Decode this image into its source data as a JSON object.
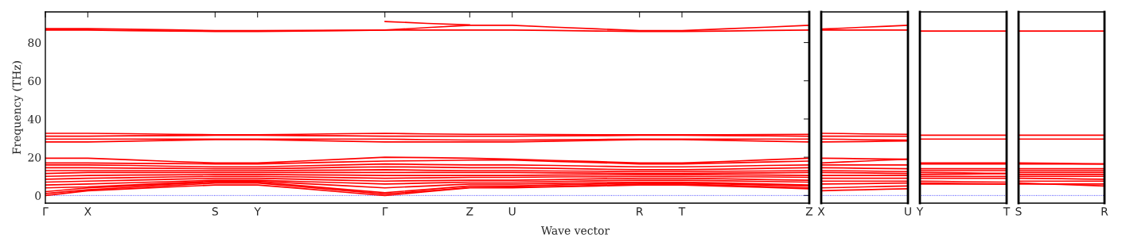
{
  "chart_data": [
    {
      "type": "line",
      "ylabel": "Frequency (THz)",
      "xlabel": "Wave vector",
      "categories": [
        "Γ",
        "X",
        null,
        null,
        "S",
        "Y",
        null,
        null,
        "Γ",
        null,
        "Z",
        "U",
        null,
        null,
        "R",
        "T",
        null,
        null,
        "Z"
      ],
      "ylim": [
        -4,
        96
      ],
      "yticks": [
        0,
        20,
        40,
        60,
        80
      ],
      "ref_lines": [
        {
          "axis": "y",
          "value": 0,
          "color": "#0000ff",
          "line_style": "dotted"
        }
      ],
      "series": [
        {
          "color": "#ff0000",
          "values": [
            87.2,
            87.2,
            86.9,
            86.6,
            86.2,
            86.2,
            86.3,
            86.4,
            86.5,
            87.8,
            89,
            89,
            88,
            87.1,
            86.2,
            86.2,
            87.1,
            88,
            89
          ]
        },
        {
          "color": "#ff0000",
          "values": [
            86.5,
            86.5,
            86.2,
            86,
            85.8,
            85.8,
            86,
            86.2,
            86.5,
            86.5,
            86.5,
            86.5,
            86.3,
            86,
            85.8,
            85.8,
            86,
            86.3,
            86.5
          ]
        },
        {
          "color": "#ff0000",
          "values": [
            null,
            null,
            null,
            null,
            null,
            null,
            null,
            null,
            91,
            90,
            89.2,
            null,
            null,
            null,
            null,
            null,
            null,
            null,
            null
          ]
        },
        {
          "color": "#ff0000",
          "values": [
            32.5,
            32.5,
            32.3,
            32,
            31.8,
            31.8,
            32,
            32.3,
            32.5,
            32.2,
            32,
            32,
            31.9,
            31.8,
            31.8,
            31.8,
            31.8,
            31.9,
            32
          ]
        },
        {
          "color": "#ff0000",
          "values": [
            31,
            31,
            31.2,
            31.3,
            31.5,
            31.5,
            31.3,
            31.2,
            31,
            31,
            31,
            31,
            31.2,
            31.3,
            31.5,
            31.5,
            31.3,
            31.2,
            31
          ]
        },
        {
          "color": "#ff0000",
          "values": [
            29.5,
            29.5,
            29.5,
            29.5,
            29.5,
            29.5,
            29.5,
            29.5,
            29.5,
            29.2,
            29,
            29,
            29.2,
            29.3,
            29.5,
            29.5,
            29.5,
            29.5,
            29.5
          ]
        },
        {
          "color": "#ff0000",
          "values": [
            28,
            28,
            28.4,
            28.8,
            29.2,
            29.2,
            28.8,
            28.4,
            28,
            28,
            28,
            28,
            28.4,
            28.8,
            29.2,
            29.2,
            28.8,
            28.4,
            28
          ]
        },
        {
          "color": "#ff0000",
          "values": [
            0,
            2.5,
            3.5,
            4.5,
            5.5,
            5.5,
            3.7,
            1.8,
            0,
            2,
            4,
            4,
            4.5,
            5,
            5.5,
            5.5,
            4.8,
            4.2,
            3.5
          ]
        },
        {
          "color": "#ff0000",
          "values": [
            1,
            3,
            4.2,
            5.3,
            6.5,
            6.5,
            4.6,
            2.7,
            0.8,
            2.4,
            4.2,
            4.4,
            4.7,
            5.3,
            6,
            6,
            5.3,
            4.7,
            4
          ]
        },
        {
          "color": "#ff0000",
          "values": [
            2,
            4,
            5,
            6,
            7,
            7,
            5.2,
            3.3,
            1.5,
            3.2,
            5,
            5,
            5.5,
            6,
            6.5,
            6.5,
            6,
            5.5,
            5
          ]
        },
        {
          "color": "#ff0000",
          "values": [
            4,
            4.5,
            5.5,
            6.5,
            7.5,
            7.5,
            6.3,
            5.2,
            4,
            5,
            6,
            6,
            6.3,
            6.7,
            7,
            7,
            6.5,
            6,
            5.5
          ]
        },
        {
          "color": "#ff0000",
          "values": [
            5.5,
            6,
            6.7,
            7.3,
            8,
            8,
            7.3,
            6.7,
            6,
            6.5,
            7,
            7,
            7.3,
            7.7,
            8,
            8,
            7.7,
            7.3,
            7
          ]
        },
        {
          "color": "#ff0000",
          "values": [
            7,
            7.5,
            8,
            8.5,
            9,
            9,
            8.5,
            8,
            7.5,
            7.8,
            8,
            8,
            8.3,
            8.7,
            9,
            9,
            8.7,
            8.3,
            8
          ]
        },
        {
          "color": "#ff0000",
          "values": [
            8.5,
            9,
            9.3,
            9.7,
            10,
            10,
            9.7,
            9.3,
            9,
            9.2,
            9.5,
            9.5,
            9.7,
            9.8,
            10,
            10,
            9.8,
            9.7,
            9.5
          ]
        },
        {
          "color": "#ff0000",
          "values": [
            10,
            10.5,
            10.7,
            10.8,
            11,
            11,
            10.8,
            10.7,
            10.5,
            10.5,
            10.5,
            10.5,
            10.7,
            10.8,
            11,
            11,
            10.8,
            10.7,
            10.5
          ]
        },
        {
          "color": "#ff0000",
          "values": [
            11.5,
            12,
            12,
            12,
            12,
            12,
            12,
            12,
            12,
            12,
            12,
            12,
            11.8,
            11.7,
            11.5,
            11.5,
            11.7,
            11.8,
            12
          ]
        },
        {
          "color": "#ff0000",
          "values": [
            13,
            13,
            13,
            13,
            13,
            13,
            13.2,
            13.3,
            13.5,
            13.2,
            13,
            13,
            12.8,
            12.7,
            12.5,
            12.5,
            12.7,
            12.8,
            13
          ]
        },
        {
          "color": "#ff0000",
          "values": [
            14.5,
            14.5,
            14.3,
            14.2,
            14,
            14,
            14.3,
            14.7,
            15,
            14.8,
            14.5,
            14.5,
            14.2,
            13.8,
            13.5,
            13.5,
            13.8,
            14.2,
            14.5
          ]
        },
        {
          "color": "#ff0000",
          "values": [
            16,
            16,
            15.7,
            15.3,
            15,
            15,
            15.5,
            16,
            16.5,
            16.2,
            16,
            16,
            15.7,
            15.3,
            15,
            15,
            15.3,
            15.7,
            16
          ]
        },
        {
          "color": "#ff0000",
          "values": [
            17,
            17,
            16.8,
            16.7,
            16.5,
            16.5,
            17,
            17.5,
            18,
            18.2,
            18.5,
            18.5,
            17.8,
            17.2,
            16.5,
            16.5,
            17,
            17.5,
            18
          ]
        },
        {
          "color": "#ff0000",
          "values": [
            19.5,
            19.5,
            18.7,
            17.8,
            17,
            17,
            18,
            19,
            20,
            19.8,
            19.5,
            19,
            18.3,
            17.7,
            17,
            17,
            17.8,
            18.7,
            19.5
          ]
        }
      ]
    },
    {
      "type": "line",
      "categories": [
        "X",
        null,
        null,
        null,
        "U"
      ],
      "ylim": [
        -4,
        96
      ],
      "tick_labels": "x",
      "ref_lines": [
        {
          "axis": "y",
          "value": 0,
          "color": "#0000ff",
          "line_style": "dotted"
        }
      ],
      "series": [
        {
          "color": "#ff0000",
          "values": [
            87,
            87.5,
            88,
            88.5,
            89
          ]
        },
        {
          "color": "#ff0000",
          "values": [
            86.5,
            86.5,
            86.5,
            86.5,
            86.5
          ]
        },
        {
          "color": "#ff0000",
          "values": [
            32.5,
            32.4,
            32.2,
            32.1,
            32
          ]
        },
        {
          "color": "#ff0000",
          "values": [
            31,
            31,
            31,
            31,
            31
          ]
        },
        {
          "color": "#ff0000",
          "values": [
            29.5,
            29.4,
            29.2,
            29.1,
            29
          ]
        },
        {
          "color": "#ff0000",
          "values": [
            28,
            28.1,
            28.2,
            28.4,
            28.5
          ]
        },
        {
          "color": "#ff0000",
          "values": [
            2.5,
            2.8,
            3,
            3.3,
            3.5
          ]
        },
        {
          "color": "#ff0000",
          "values": [
            4,
            4.2,
            4.5,
            4.8,
            5
          ]
        },
        {
          "color": "#ff0000",
          "values": [
            6,
            6.1,
            6.2,
            6.4,
            6.5
          ]
        },
        {
          "color": "#ff0000",
          "values": [
            7.5,
            7.5,
            7.5,
            7.5,
            7.5
          ]
        },
        {
          "color": "#ff0000",
          "values": [
            9,
            9,
            9,
            9,
            9
          ]
        },
        {
          "color": "#ff0000",
          "values": [
            10.5,
            10.5,
            10.5,
            10.5,
            10.5
          ]
        },
        {
          "color": "#ff0000",
          "values": [
            12,
            11.9,
            11.8,
            11.6,
            11.5
          ]
        },
        {
          "color": "#ff0000",
          "values": [
            13,
            12.9,
            12.8,
            12.6,
            12.5
          ]
        },
        {
          "color": "#ff0000",
          "values": [
            14.5,
            14.4,
            14.2,
            14.1,
            14
          ]
        },
        {
          "color": "#ff0000",
          "values": [
            16,
            16,
            16,
            16,
            16
          ]
        },
        {
          "color": "#ff0000",
          "values": [
            17,
            17.5,
            18,
            18.5,
            19
          ]
        },
        {
          "color": "#ff0000",
          "values": [
            19.5,
            19.4,
            19.2,
            19.1,
            19
          ]
        }
      ]
    },
    {
      "type": "line",
      "categories": [
        "Y",
        null,
        null,
        null,
        "T"
      ],
      "ylim": [
        -4,
        96
      ],
      "tick_labels": "x",
      "ref_lines": [
        {
          "axis": "y",
          "value": 0,
          "color": "#0000ff",
          "line_style": "dotted"
        }
      ],
      "series": [
        {
          "color": "#ff0000",
          "values": [
            86,
            86,
            86,
            86,
            86
          ]
        },
        {
          "color": "#ff0000",
          "values": [
            31.5,
            31.5,
            31.5,
            31.5,
            31.5
          ]
        },
        {
          "color": "#ff0000",
          "values": [
            29.5,
            29.5,
            29.5,
            29.5,
            29.5
          ]
        },
        {
          "color": "#ff0000",
          "values": [
            6,
            6,
            6,
            6,
            6
          ]
        },
        {
          "color": "#ff0000",
          "values": [
            6.5,
            6.4,
            6.2,
            6.1,
            6
          ]
        },
        {
          "color": "#ff0000",
          "values": [
            7.5,
            7.4,
            7.2,
            7.1,
            7
          ]
        },
        {
          "color": "#ff0000",
          "values": [
            9,
            9,
            9,
            9,
            9
          ]
        },
        {
          "color": "#ff0000",
          "values": [
            10,
            10,
            10,
            10,
            10
          ]
        },
        {
          "color": "#ff0000",
          "values": [
            11,
            11.1,
            11.2,
            11.4,
            11.5
          ]
        },
        {
          "color": "#ff0000",
          "values": [
            12,
            11.9,
            11.8,
            11.6,
            11.5
          ]
        },
        {
          "color": "#ff0000",
          "values": [
            13,
            13,
            13,
            13,
            13
          ]
        },
        {
          "color": "#ff0000",
          "values": [
            14,
            14,
            14,
            14,
            14
          ]
        },
        {
          "color": "#ff0000",
          "values": [
            16.5,
            16.5,
            16.5,
            16.5,
            16.5
          ]
        },
        {
          "color": "#ff0000",
          "values": [
            17,
            17,
            17,
            17,
            17
          ]
        }
      ]
    },
    {
      "type": "line",
      "categories": [
        "S",
        null,
        null,
        null,
        "R"
      ],
      "ylim": [
        -4,
        96
      ],
      "tick_labels": "x",
      "ref_lines": [
        {
          "axis": "y",
          "value": 0,
          "color": "#0000ff",
          "line_style": "dotted"
        }
      ],
      "series": [
        {
          "color": "#ff0000",
          "values": [
            86,
            86,
            86,
            86,
            86
          ]
        },
        {
          "color": "#ff0000",
          "values": [
            31.5,
            31.5,
            31.5,
            31.5,
            31.5
          ]
        },
        {
          "color": "#ff0000",
          "values": [
            29.5,
            29.5,
            29.5,
            29.5,
            29.5
          ]
        },
        {
          "color": "#ff0000",
          "values": [
            6,
            6,
            6,
            6,
            6
          ]
        },
        {
          "color": "#ff0000",
          "values": [
            6.5,
            6.1,
            5.8,
            5.4,
            5
          ]
        },
        {
          "color": "#ff0000",
          "values": [
            7.5,
            7.5,
            7.5,
            7.5,
            7.5
          ]
        },
        {
          "color": "#ff0000",
          "values": [
            9,
            8.9,
            8.8,
            8.6,
            8.5
          ]
        },
        {
          "color": "#ff0000",
          "values": [
            10,
            10,
            10,
            10,
            10
          ]
        },
        {
          "color": "#ff0000",
          "values": [
            11,
            11,
            11,
            11,
            11
          ]
        },
        {
          "color": "#ff0000",
          "values": [
            12,
            12,
            12,
            12,
            12
          ]
        },
        {
          "color": "#ff0000",
          "values": [
            13,
            13,
            13,
            13,
            13
          ]
        },
        {
          "color": "#ff0000",
          "values": [
            14,
            14,
            14,
            14,
            14
          ]
        },
        {
          "color": "#ff0000",
          "values": [
            16.5,
            16.5,
            16.5,
            16.5,
            16.5
          ]
        },
        {
          "color": "#ff0000",
          "values": [
            17,
            16.9,
            16.8,
            16.6,
            16.5
          ]
        }
      ]
    }
  ]
}
